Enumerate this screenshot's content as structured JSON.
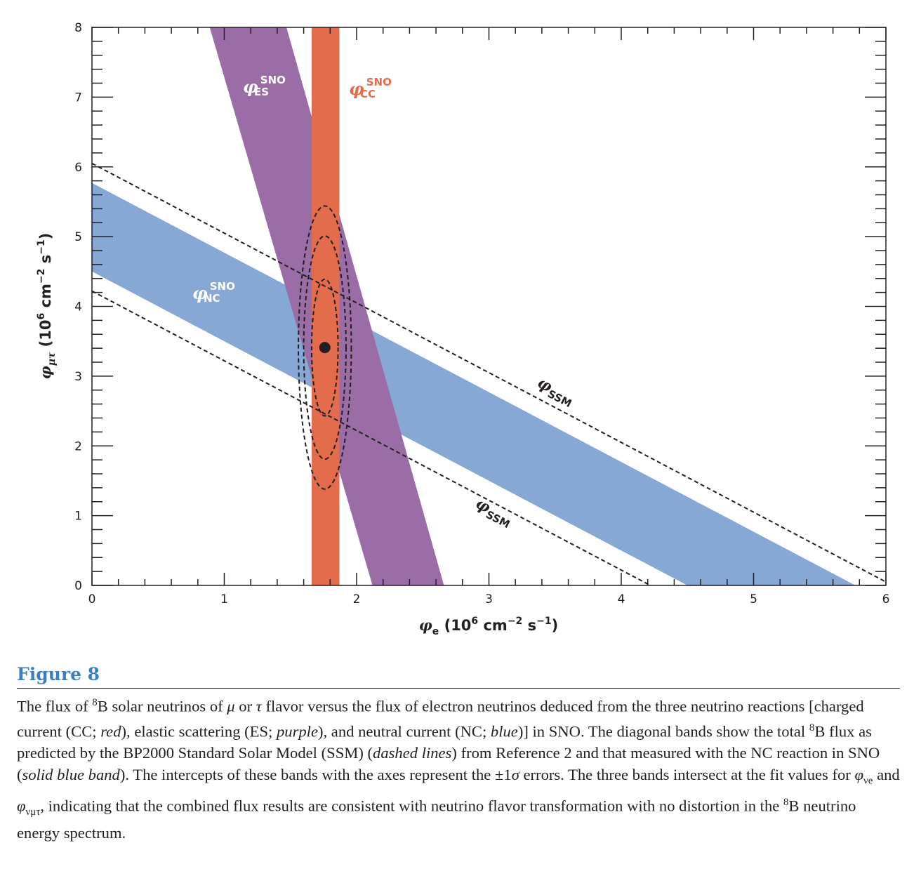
{
  "chart_data": {
    "type": "area",
    "xlabel": "φe (10⁶ cm⁻² s⁻¹)",
    "ylabel": "φμτ (10⁶ cm⁻² s⁻¹)",
    "xlim": [
      0,
      6
    ],
    "ylim": [
      0,
      8
    ],
    "xticks": [
      "0",
      "1",
      "2",
      "3",
      "4",
      "5",
      "6"
    ],
    "yticks": [
      "0",
      "1",
      "2",
      "3",
      "4",
      "5",
      "6",
      "7",
      "8"
    ],
    "colors": {
      "cc": "#e36c4c",
      "es": "#9a6da7",
      "nc": "#87a7d5",
      "ink": "#231f20"
    },
    "bands": {
      "cc": {
        "label": "φ",
        "label_sup": "SNO",
        "label_sub": "CC",
        "phi_e_min": 1.66,
        "phi_e_max": 1.87
      },
      "es": {
        "label": "φ",
        "label_sup": "SNO",
        "label_sub": "ES",
        "line_low": [
          [
            0.89,
            8.0
          ],
          [
            2.12,
            0.0
          ]
        ],
        "line_high": [
          [
            1.47,
            8.0
          ],
          [
            2.66,
            0.0
          ]
        ]
      },
      "nc": {
        "label": "φ",
        "label_sup": "SNO",
        "label_sub": "NC",
        "sum_min": 4.5,
        "sum_max": 5.77
      }
    },
    "ssm": {
      "label": "φ",
      "label_sub": "SSM",
      "sum_min": 4.22,
      "sum_max": 6.05
    },
    "fit_point": {
      "phi_e": 1.76,
      "phi_mutau": 3.41
    },
    "contours": [
      {
        "cx": 1.76,
        "cy": 3.41,
        "rx": 0.1,
        "ry": 0.98
      },
      {
        "cx": 1.76,
        "cy": 3.41,
        "rx": 0.16,
        "ry": 1.6
      },
      {
        "cx": 1.76,
        "cy": 3.41,
        "rx": 0.2,
        "ry": 2.03
      }
    ]
  },
  "figure": {
    "label": "Figure 8",
    "caption": [
      "The flux of ",
      "8",
      "B solar neutrinos of ",
      "μ",
      " or ",
      "τ",
      " flavor versus the flux of electron neutrinos deduced from the three neutrino reactions [charged current (CC; ",
      "red",
      "), elastic scattering (ES; ",
      "purple",
      "), and neutral current (NC; ",
      "blue",
      ")] in SNO. The diagonal bands show the total ",
      "8",
      "B flux as predicted by the BP2000 Standard Solar Model (SSM) (",
      "dashed lines",
      ") from Reference 2 and that measured with the NC reaction in SNO (",
      "solid blue band",
      "). The intercepts of these bands with the axes represent the ±1",
      "σ",
      " errors. The three bands intersect at the fit values for ",
      "φ",
      "νe",
      " and ",
      "φ",
      "νμτ",
      ", indicating that the combined flux results are consistent with neutrino flavor transformation with no distortion in the ",
      "8",
      "B neutrino energy spectrum."
    ]
  }
}
